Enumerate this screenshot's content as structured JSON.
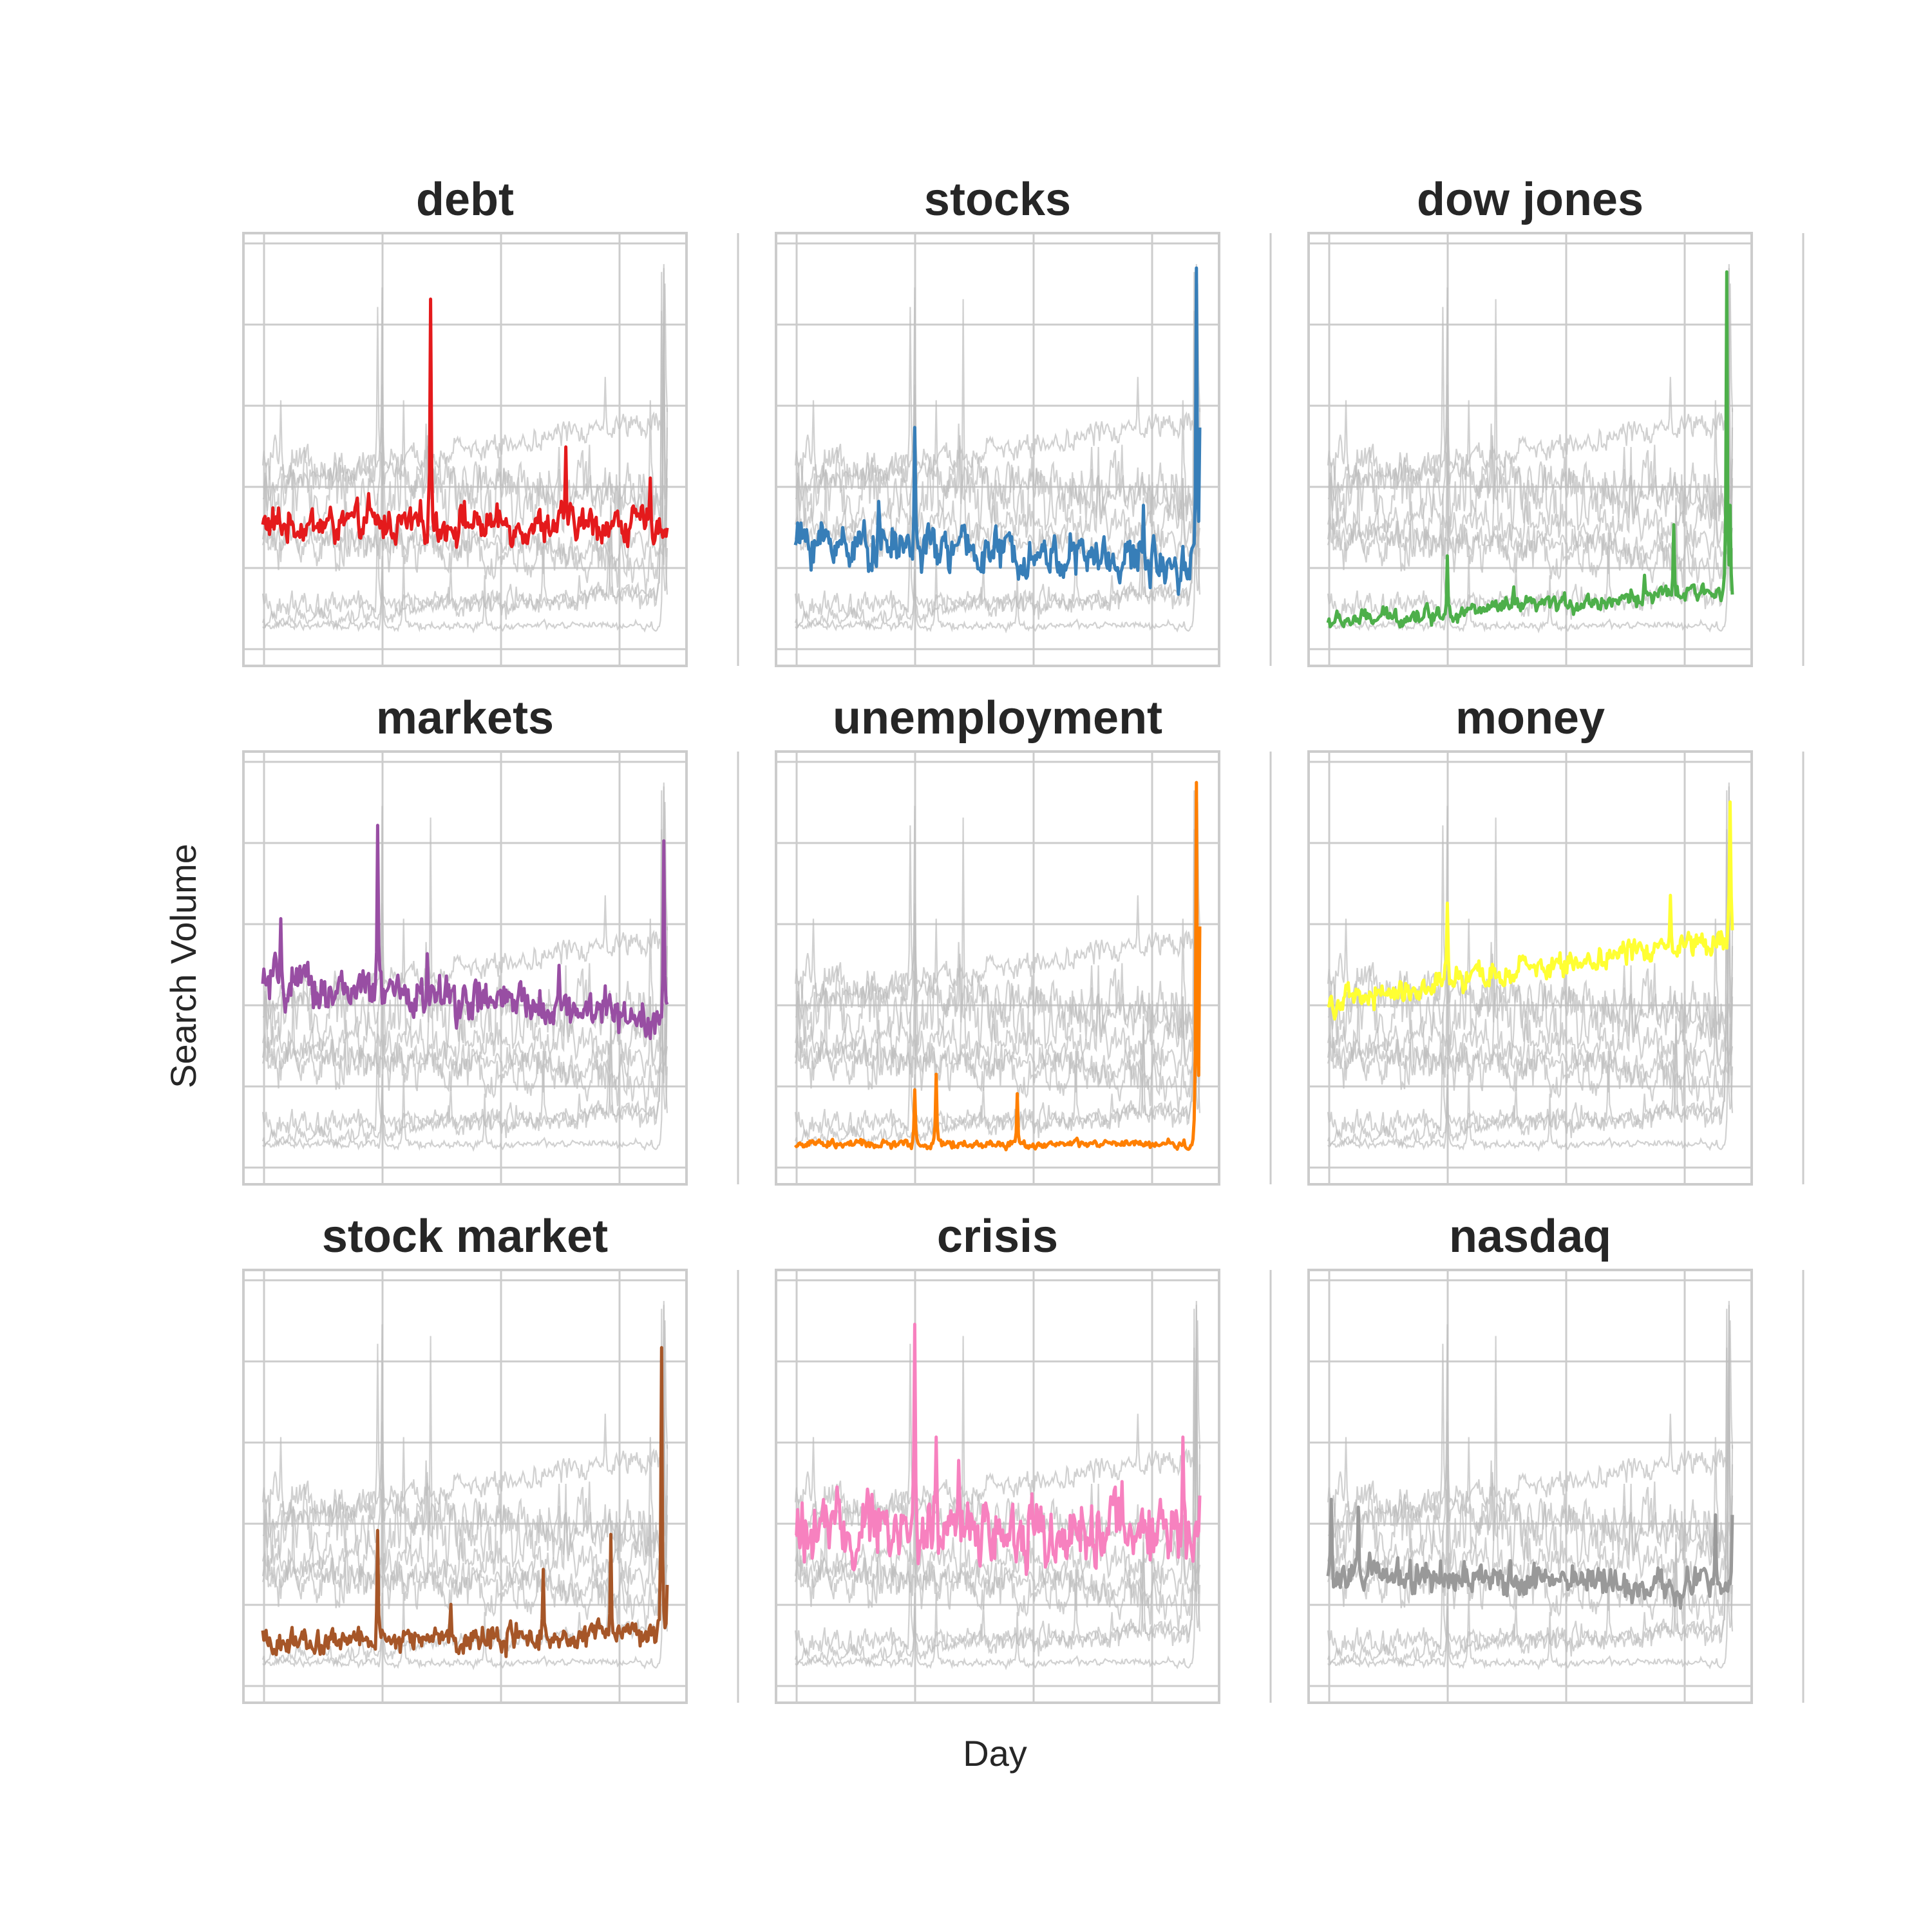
{
  "figure": {
    "xlabel": "Day",
    "ylabel": "Search Volume"
  },
  "chart_data": {
    "type": "line",
    "layout": "3x3 small multiples, each panel highlights one series in color, the others drawn in light grey",
    "grid": true,
    "x_tick_labels_shown": false,
    "y_tick_labels_shown": false,
    "n_points": 360,
    "ylim": [
      0,
      100
    ],
    "series": [
      {
        "name": "debt",
        "color": "#e41a1c",
        "baseline": 30,
        "trend": 0,
        "noise": 4,
        "spikes": [
          [
            150,
            88
          ],
          [
            270,
            50
          ],
          [
            345,
            42
          ],
          [
            95,
            38
          ],
          [
            180,
            36
          ]
        ]
      },
      {
        "name": "stocks",
        "color": "#377eb8",
        "baseline": 26,
        "trend": -6,
        "noise": 5,
        "spikes": [
          [
            107,
            55
          ],
          [
            357,
            96
          ],
          [
            360,
            55
          ],
          [
            75,
            36
          ],
          [
            310,
            35
          ]
        ]
      },
      {
        "name": "dow jones",
        "color": "#4daf4a",
        "baseline": 5,
        "trend": 8,
        "noise": 2,
        "spikes": [
          [
            107,
            22
          ],
          [
            166,
            14
          ],
          [
            282,
            17
          ],
          [
            308,
            30
          ],
          [
            355,
            95
          ],
          [
            358,
            35
          ]
        ]
      },
      {
        "name": "markets",
        "color": "#984ea3",
        "baseline": 45,
        "trend": -8,
        "noise": 5,
        "spikes": [
          [
            17,
            62
          ],
          [
            103,
            86
          ],
          [
            357,
            82
          ],
          [
            147,
            53
          ],
          [
            264,
            50
          ]
        ]
      },
      {
        "name": "unemployment",
        "color": "#ff7f00",
        "baseline": 4,
        "trend": 0,
        "noise": 1,
        "spikes": [
          [
            107,
            18
          ],
          [
            126,
            22
          ],
          [
            198,
            17
          ],
          [
            357,
            97
          ],
          [
            360,
            60
          ]
        ]
      },
      {
        "name": "money",
        "color": "#ffff33",
        "baseline": 40,
        "trend": 18,
        "noise": 3,
        "spikes": [
          [
            107,
            66
          ],
          [
            305,
            68
          ],
          [
            358,
            92
          ]
        ]
      },
      {
        "name": "stock market",
        "color": "#a65628",
        "baseline": 9,
        "trend": 3,
        "noise": 3,
        "spikes": [
          [
            103,
            38
          ],
          [
            168,
            19
          ],
          [
            250,
            28
          ],
          [
            310,
            37
          ],
          [
            355,
            85
          ],
          [
            360,
            24
          ]
        ]
      },
      {
        "name": "crisis",
        "color": "#f781bf",
        "baseline": 38,
        "trend": 0,
        "noise": 8,
        "spikes": [
          [
            107,
            91
          ],
          [
            126,
            62
          ],
          [
            146,
            56
          ],
          [
            345,
            62
          ],
          [
            360,
            41
          ]
        ]
      },
      {
        "name": "nasdaq",
        "color": "#999999",
        "baseline": 26,
        "trend": -2,
        "noise": 4,
        "spikes": [
          [
            4,
            46
          ],
          [
            28,
            44
          ],
          [
            345,
            42
          ],
          [
            360,
            42
          ]
        ]
      }
    ]
  }
}
